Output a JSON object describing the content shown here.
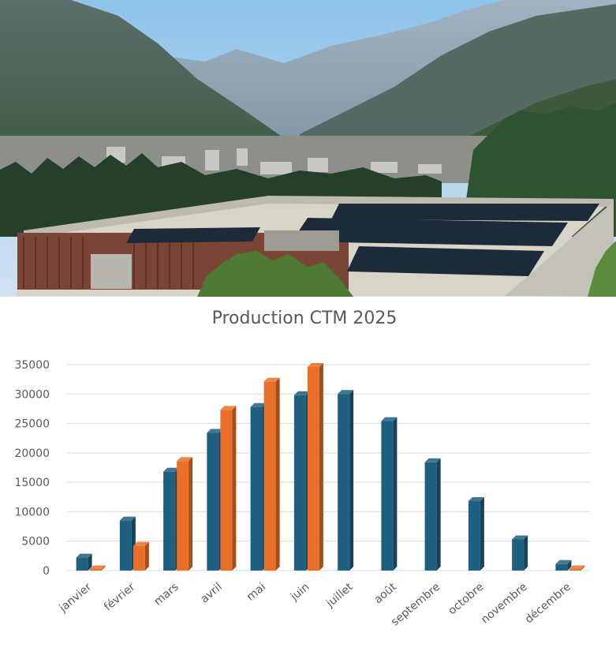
{
  "photo": {
    "sky_top": "#8fc3ea",
    "sky_bottom": "#cfe3f1",
    "panel_color": "#1c2a3a"
  },
  "chart_data": {
    "type": "bar",
    "title": "Production CTM 2025",
    "categories": [
      "janvier",
      "février",
      "mars",
      "avril",
      "mai",
      "juin",
      "juillet",
      "août",
      "septembre",
      "octobre",
      "novembre",
      "décembre"
    ],
    "series": [
      {
        "color": "#1f5f80",
        "values": [
          2200,
          8500,
          16800,
          23400,
          27800,
          29800,
          30000,
          25400,
          18400,
          11800,
          5300,
          1100
        ]
      },
      {
        "color": "#e8702a",
        "values": [
          150,
          4200,
          18600,
          27300,
          32100,
          34600,
          null,
          null,
          null,
          null,
          null,
          150
        ]
      }
    ],
    "yticks": [
      0,
      5000,
      10000,
      15000,
      20000,
      25000,
      30000,
      35000
    ],
    "ylim": [
      0,
      35000
    ],
    "grid": true,
    "xlabel": "",
    "ylabel": ""
  }
}
